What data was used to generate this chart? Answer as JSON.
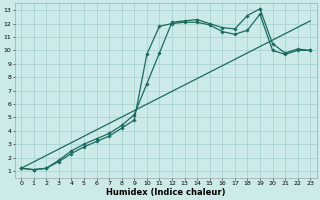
{
  "title": "",
  "xlabel": "Humidex (Indice chaleur)",
  "bg_color": "#cceae8",
  "grid_color": "#aad4d0",
  "line_color": "#1a6b60",
  "xlim": [
    -0.5,
    23.5
  ],
  "ylim": [
    0.5,
    13.5
  ],
  "xticks": [
    0,
    1,
    2,
    3,
    4,
    5,
    6,
    7,
    8,
    9,
    10,
    11,
    12,
    13,
    14,
    15,
    16,
    17,
    18,
    19,
    20,
    21,
    22,
    23
  ],
  "yticks": [
    1,
    2,
    3,
    4,
    5,
    6,
    7,
    8,
    9,
    10,
    11,
    12,
    13
  ],
  "line1_x": [
    0,
    1,
    2,
    3,
    4,
    5,
    6,
    7,
    8,
    9,
    10,
    11,
    12,
    13,
    14,
    15,
    16,
    17,
    18,
    19,
    20,
    21,
    22,
    23
  ],
  "line1_y": [
    1.2,
    1.1,
    1.2,
    1.7,
    2.3,
    2.8,
    3.2,
    3.6,
    4.2,
    4.8,
    9.7,
    11.8,
    12.0,
    12.1,
    12.1,
    11.9,
    11.4,
    11.2,
    11.5,
    12.7,
    10.0,
    9.7,
    10.0,
    10.0
  ],
  "line2_x": [
    0,
    1,
    2,
    3,
    4,
    5,
    6,
    7,
    8,
    9,
    10,
    11,
    12,
    13,
    14,
    15,
    16,
    17,
    18,
    19,
    20,
    21,
    22,
    23
  ],
  "line2_y": [
    1.2,
    1.1,
    1.2,
    1.8,
    2.5,
    3.0,
    3.4,
    3.8,
    4.4,
    5.2,
    7.5,
    9.8,
    12.1,
    12.2,
    12.3,
    12.0,
    11.7,
    11.6,
    12.6,
    13.1,
    10.5,
    9.8,
    10.1,
    10.0
  ],
  "line3_x": [
    0,
    23
  ],
  "line3_y": [
    1.2,
    12.2
  ],
  "xlabel_fontsize": 6,
  "tick_fontsize": 4.5,
  "linewidth": 0.9,
  "markersize": 1.8
}
